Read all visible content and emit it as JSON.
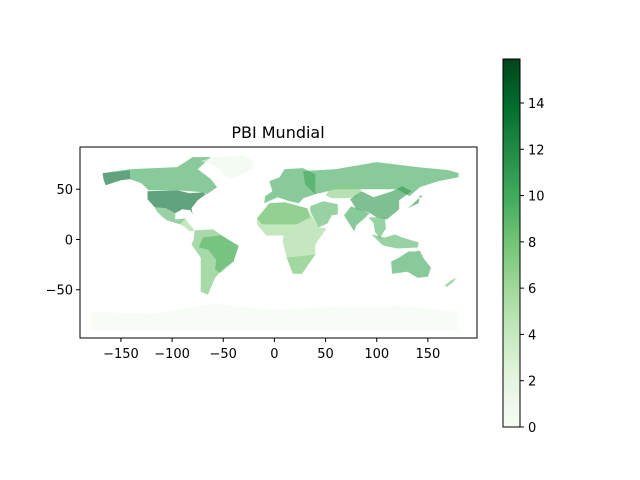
{
  "chart_data": {
    "type": "choropleth-map",
    "title": "PBI Mundial",
    "xlabel": "",
    "ylabel": "",
    "x_ticks": [
      -150,
      -100,
      -50,
      0,
      50,
      100,
      150
    ],
    "x_tick_labels": [
      "−150",
      "−100",
      "−50",
      "0",
      "50",
      "100",
      "150"
    ],
    "y_ticks": [
      50,
      0,
      -50
    ],
    "y_tick_labels": [
      "50",
      "0",
      "−50"
    ],
    "xlim": [
      -190,
      198
    ],
    "ylim": [
      -98,
      92
    ],
    "grid": false,
    "colormap": "Greens",
    "colorbar": {
      "min": 0,
      "max": 15.9,
      "ticks": [
        0,
        2,
        4,
        6,
        8,
        10,
        12,
        14
      ],
      "tick_labels": [
        "0",
        "2",
        "4",
        "6",
        "8",
        "10",
        "12",
        "14"
      ]
    },
    "regions": [
      {
        "name": "North America",
        "value": 10
      },
      {
        "name": "United States",
        "value": 14
      },
      {
        "name": "Alaska",
        "value": 14
      },
      {
        "name": "Mexico",
        "value": 9
      },
      {
        "name": "Central America",
        "value": 6
      },
      {
        "name": "Greenland",
        "value": 1
      },
      {
        "name": "South America",
        "value": 8
      },
      {
        "name": "Brazil",
        "value": 9
      },
      {
        "name": "Europe",
        "value": 10
      },
      {
        "name": "Africa",
        "value": 6
      },
      {
        "name": "Northern Africa",
        "value": 8
      },
      {
        "name": "Southern Africa",
        "value": 7
      },
      {
        "name": "Middle East",
        "value": 9
      },
      {
        "name": "Russia",
        "value": 10
      },
      {
        "name": "Kazakhstan",
        "value": 7
      },
      {
        "name": "China",
        "value": 11
      },
      {
        "name": "India",
        "value": 10
      },
      {
        "name": "Southeast Asia",
        "value": 9
      },
      {
        "name": "Indonesia",
        "value": 9
      },
      {
        "name": "Japan",
        "value": 11
      },
      {
        "name": "Australia",
        "value": 10
      },
      {
        "name": "New Zealand",
        "value": 8
      },
      {
        "name": "Antarctica",
        "value": 0.5
      }
    ]
  }
}
